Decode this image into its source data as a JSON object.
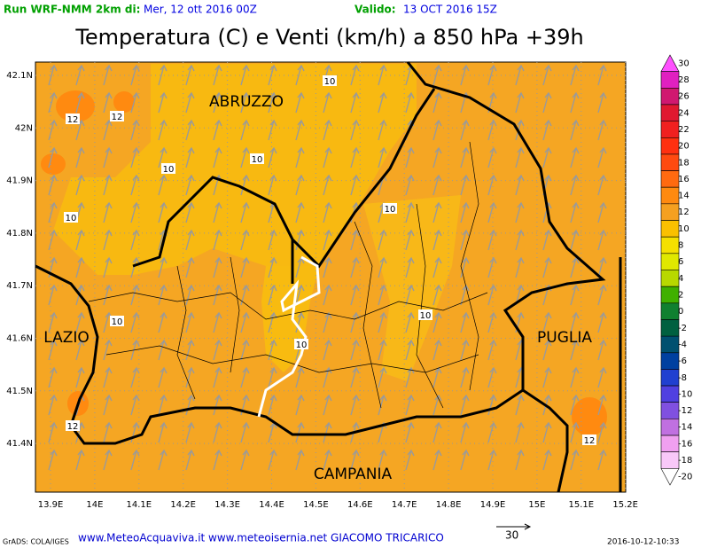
{
  "header": {
    "run_label": "Run WRF-NMM 2km di:",
    "run_date": "Mer, 12 ott 2016 00Z",
    "valid_label": "Valido:",
    "valid_date": "13 OCT 2016 15Z"
  },
  "title": "Temperatura (C) e Venti (km/h) a 850 hPa +39h",
  "lat_labels": [
    "42.1N",
    "42N",
    "41.9N",
    "41.8N",
    "41.7N",
    "41.6N",
    "41.5N",
    "41.4N"
  ],
  "lon_labels": [
    "13.9E",
    "14E",
    "14.1E",
    "14.2E",
    "14.3E",
    "14.4E",
    "14.5E",
    "14.6E",
    "14.7E",
    "14.8E",
    "14.9E",
    "15E",
    "15.1E",
    "15.2E"
  ],
  "regions": [
    "ABRUZZO",
    "LAZIO",
    "PUGLIA",
    "CAMPANIA"
  ],
  "contour_labels": [
    10,
    10,
    10,
    10,
    10,
    10,
    10,
    10,
    12,
    12,
    12,
    12
  ],
  "colorbar": [
    {
      "value": 30,
      "color": "#ff50ff"
    },
    {
      "value": 28,
      "color": "#e020c0"
    },
    {
      "value": 26,
      "color": "#d01870"
    },
    {
      "value": 24,
      "color": "#e01830"
    },
    {
      "value": 22,
      "color": "#f02020"
    },
    {
      "value": 20,
      "color": "#ff3010"
    },
    {
      "value": 18,
      "color": "#ff4a10"
    },
    {
      "value": 16,
      "color": "#ff6a10"
    },
    {
      "value": 14,
      "color": "#ff8a10"
    },
    {
      "value": 12,
      "color": "#f5a020"
    },
    {
      "value": 10,
      "color": "#fac000"
    },
    {
      "value": 8,
      "color": "#f5e000"
    },
    {
      "value": 6,
      "color": "#e0e800"
    },
    {
      "value": 4,
      "color": "#b8d800"
    },
    {
      "value": 2,
      "color": "#40b000"
    },
    {
      "value": 0,
      "color": "#108030"
    },
    {
      "value": -2,
      "color": "#006040"
    },
    {
      "value": -4,
      "color": "#005070"
    },
    {
      "value": -6,
      "color": "#0040a0"
    },
    {
      "value": -8,
      "color": "#2040d0"
    },
    {
      "value": -10,
      "color": "#5040e0"
    },
    {
      "value": -12,
      "color": "#8050e0"
    },
    {
      "value": -14,
      "color": "#c070e0"
    },
    {
      "value": -16,
      "color": "#f0a0f0"
    },
    {
      "value": -18,
      "color": "#f8c8f8"
    },
    {
      "value": -20,
      "color": "#ffffff"
    }
  ],
  "footer": {
    "software": "GrADS: COLA/IGES",
    "credits": "www.MeteoAcquaviva.it www.meteoisernia.net GIACOMO TRICARICO",
    "wind_reference": 30,
    "timestamp": "2016-10-12-10:33"
  }
}
